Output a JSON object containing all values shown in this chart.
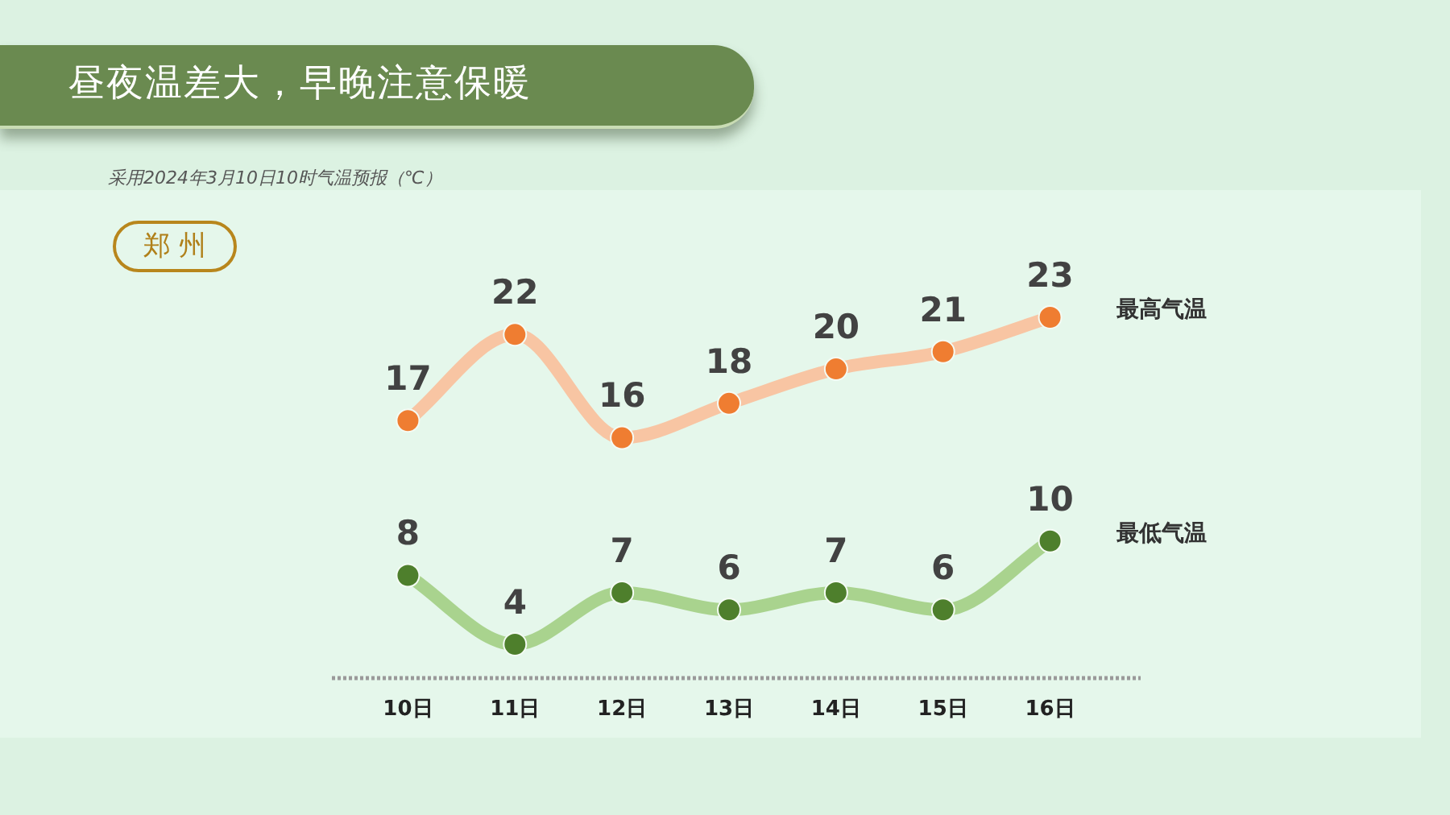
{
  "chart_data": {
    "type": "line",
    "title": "昼夜温差大，早晚注意保暖",
    "subtitle": "采用2024年3月10日10时气温预报（℃）",
    "annotations": [
      "郑州"
    ],
    "categories": [
      "10日",
      "11日",
      "12日",
      "13日",
      "14日",
      "15日",
      "16日"
    ],
    "series": [
      {
        "name": "最高气温",
        "color": "#f8c5a3",
        "colors": [
          "#ef7d31",
          "#ef7d31",
          "#ef7d31",
          "#ef7d31",
          "#ef7d31",
          "#ef7d31",
          "#ef7d31"
        ],
        "values": [
          17,
          22,
          16,
          18,
          20,
          21,
          23
        ]
      },
      {
        "name": "最低气温",
        "color": "#a9d38e",
        "colors": [
          "#4e7f2c",
          "#4e7f2c",
          "#4e7f2c",
          "#4e7f2c",
          "#4e7f2c",
          "#4e7f2c",
          "#4e7f2c"
        ],
        "values": [
          8,
          4,
          7,
          6,
          7,
          6,
          10
        ]
      }
    ],
    "tick_labels": "x",
    "data_labels": true,
    "marker": "circle",
    "line_style": "solid",
    "legend": false,
    "grid": false
  }
}
